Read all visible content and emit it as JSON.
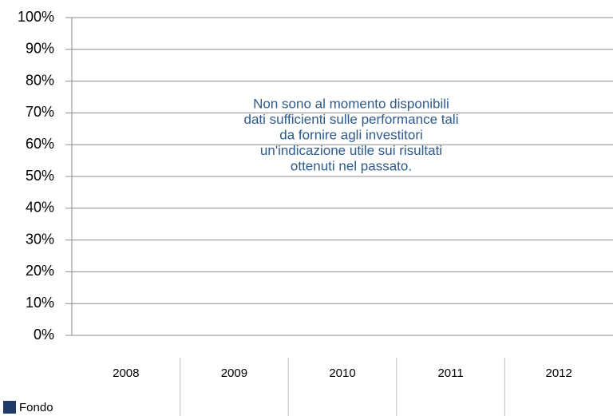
{
  "chart_data": {
    "type": "bar",
    "categories": [
      "2008",
      "2009",
      "2010",
      "2011",
      "2012"
    ],
    "series": [
      {
        "name": "Fondo",
        "color": "#1f3a64",
        "values": [
          null,
          null,
          null,
          null,
          null
        ]
      }
    ],
    "ylim": [
      0,
      100
    ],
    "yticks": [
      {
        "value": 0,
        "label": "0%"
      },
      {
        "value": 10,
        "label": "10%"
      },
      {
        "value": 20,
        "label": "20%"
      },
      {
        "value": 30,
        "label": "30%"
      },
      {
        "value": 40,
        "label": "40%"
      },
      {
        "value": 50,
        "label": "50%"
      },
      {
        "value": 60,
        "label": "60%"
      },
      {
        "value": 70,
        "label": "70%"
      },
      {
        "value": 80,
        "label": "80%"
      },
      {
        "value": 90,
        "label": "90%"
      },
      {
        "value": 100,
        "label": "100%"
      }
    ],
    "grid": true,
    "annotation": [
      "Non sono al momento disponibili",
      "dati sufficienti sulle performance tali",
      "da fornire agli investitori",
      "un'indicazione utile sui risultati",
      "ottenuti nel passato."
    ]
  }
}
